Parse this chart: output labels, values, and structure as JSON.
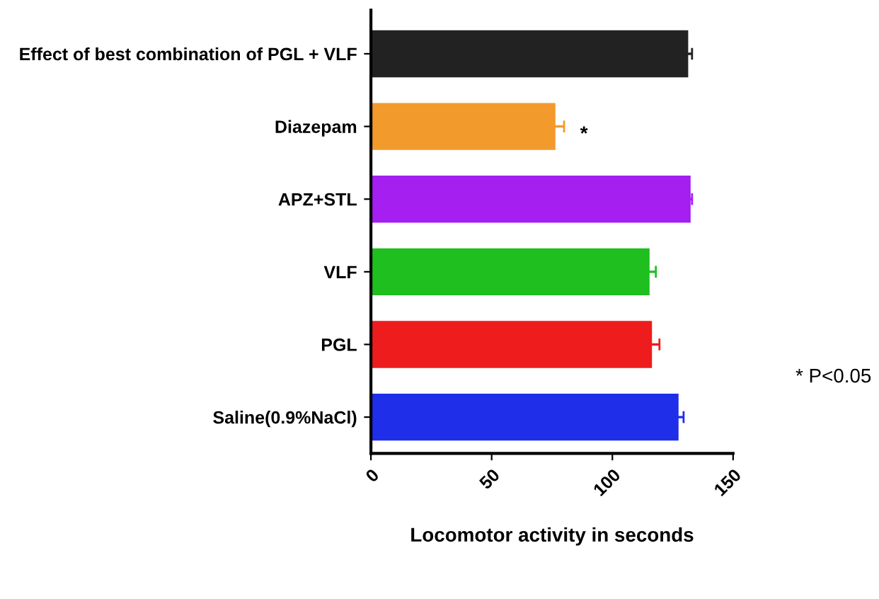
{
  "chart_data": {
    "type": "bar",
    "orientation": "horizontal",
    "xlabel": "Locomotor activity in seconds",
    "categories": [
      "Effect of best combination of PGL + VLF",
      "Diazepam",
      "APZ+STL",
      "VLF",
      "PGL",
      "Saline(0.9%NaCl)"
    ],
    "values": [
      131,
      76,
      132,
      115,
      116,
      127
    ],
    "errors": [
      2,
      4,
      1,
      3,
      3.5,
      2.5
    ],
    "colors": [
      "#222222",
      "#f39a2c",
      "#a41ff0",
      "#1fbf1f",
      "#ee1c1c",
      "#1f2ee8"
    ],
    "xlim": [
      0,
      150
    ],
    "xticks": [
      0,
      50,
      100,
      150
    ],
    "grid": false,
    "annotations": [
      "*",
      "* P<0.05"
    ]
  }
}
